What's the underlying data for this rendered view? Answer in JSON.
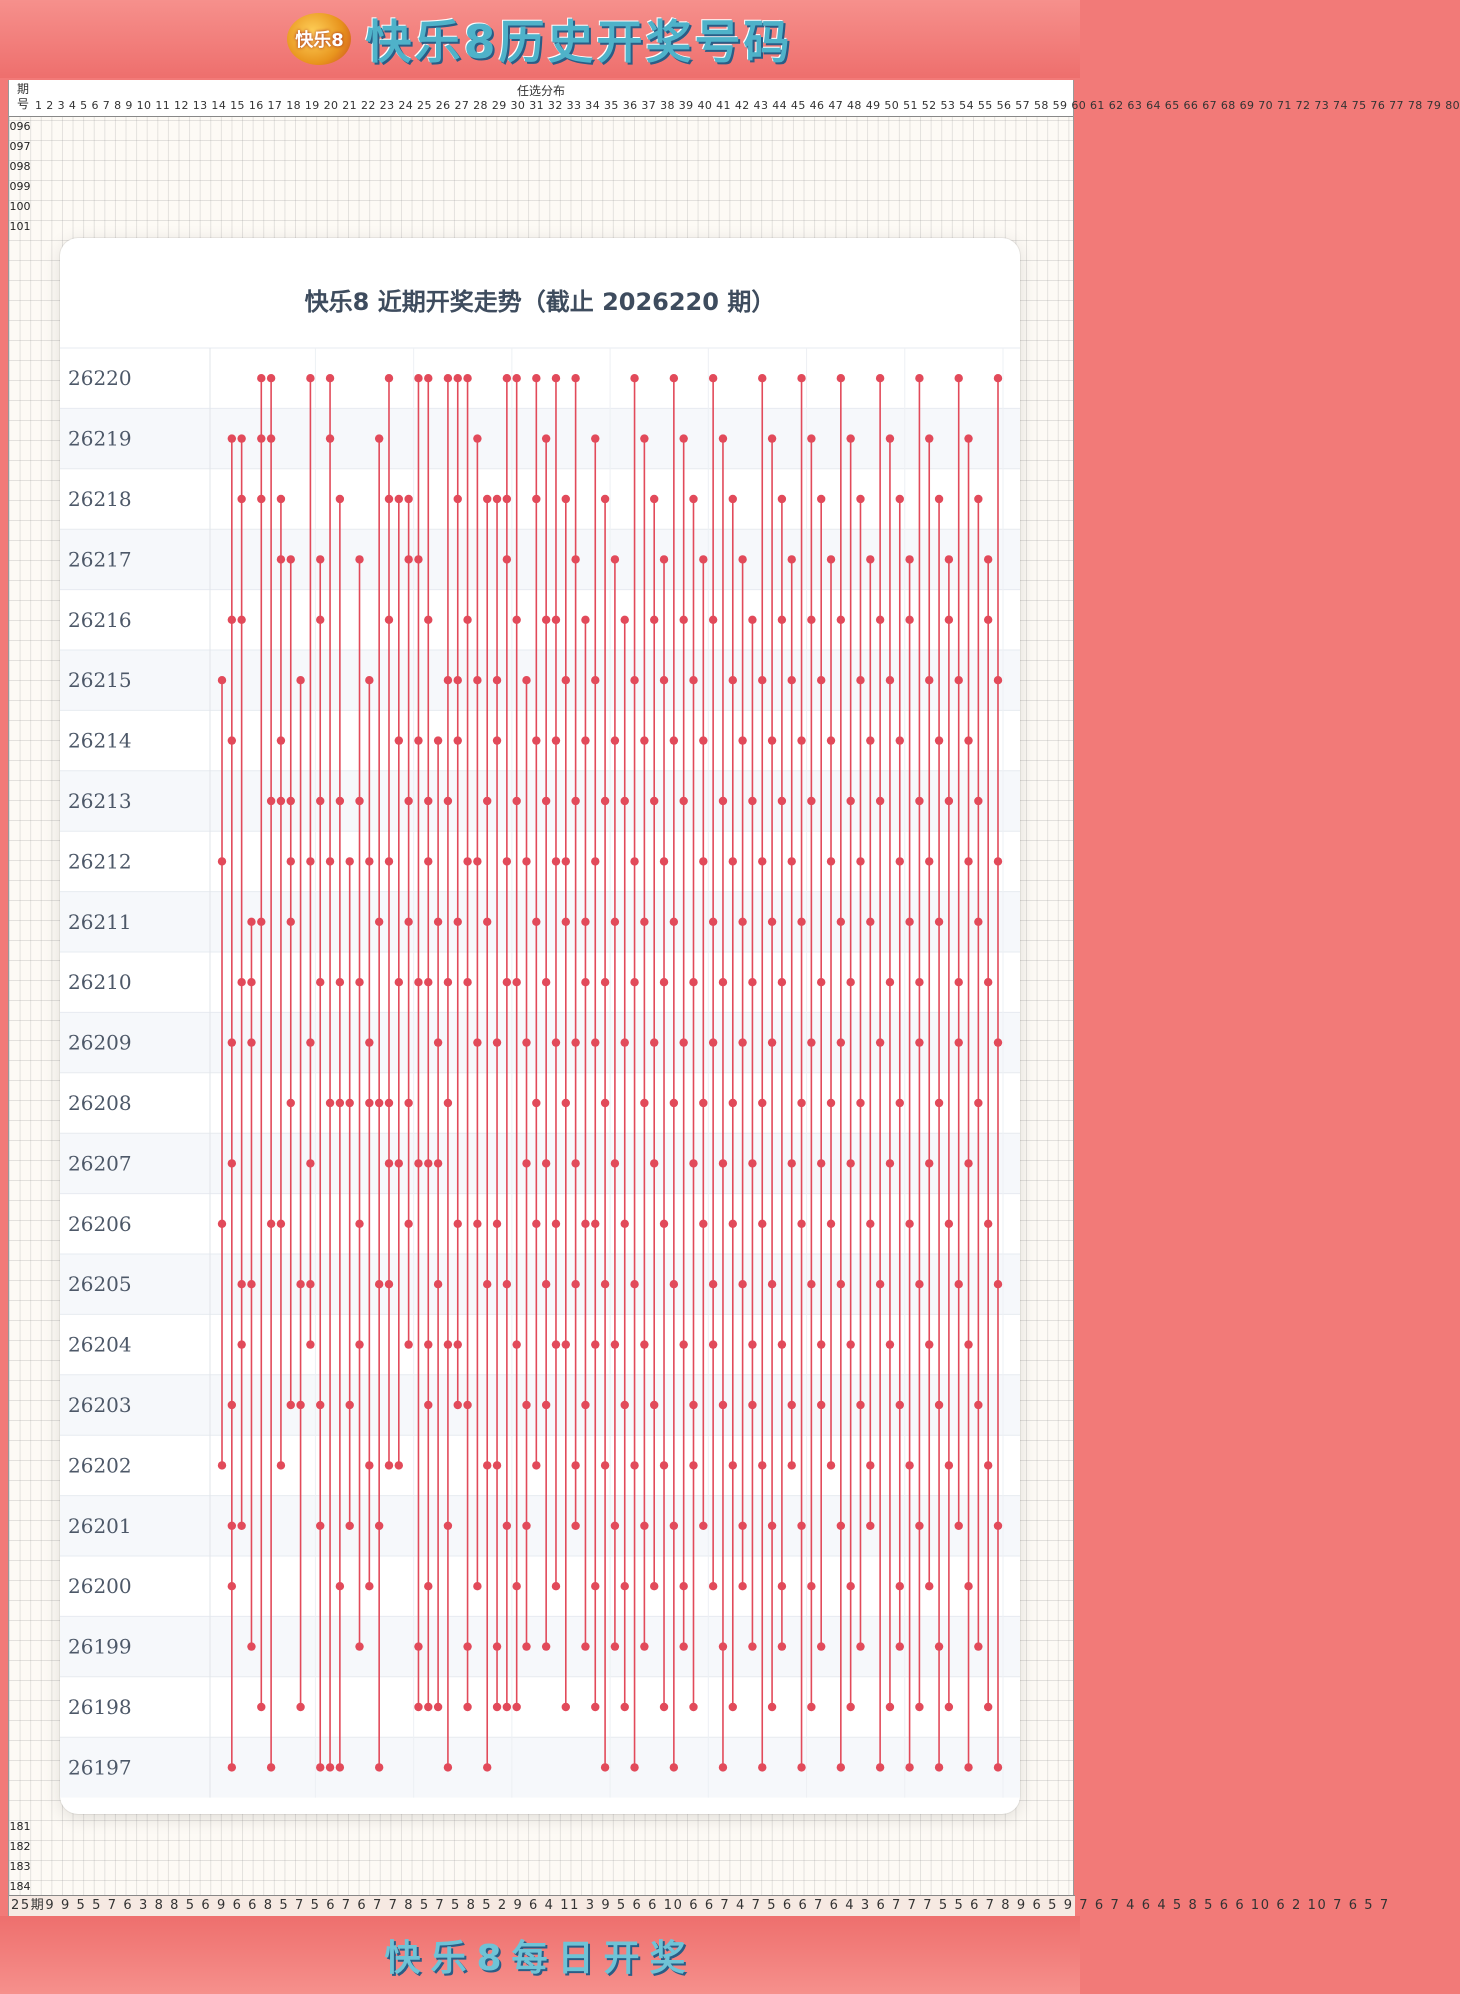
{
  "banner": {
    "title": "快乐8历史开奖号码",
    "logo_text": "快乐8"
  },
  "sheet": {
    "header_left": "期号",
    "header_center": "任选分布",
    "header_numbers": "1 2 3 4 5 6 7 8 9 10 11 12 13 14 15 16 17 18 19 20 21 22 23 24 25 26 27 28 29 30 31 32 33 34 35 36 37 38 39 40 41 42 43 44 45 46 47 48 49 50 51 52 53 54 55 56 57 58 59 60 61 62 63 64 65 66 67 68 69 70 71 72 73 74 75 76 77 78 79 80",
    "row_numbers_top": [
      "096",
      "097",
      "098",
      "099",
      "100",
      "101"
    ],
    "row_numbers_bottom": [
      "181",
      "182",
      "183",
      "184"
    ],
    "footer_text": "25期9 9 5 5 7 6 3 8 8 5 6 9 6 6 8 5 7 5 6 7 6 7 7 8 5 7 5 8 5 2 9 6 4 11 3 9 5 6 6 10 6 6 7 4 7 5 6 6 7 6 4 3 6 7 7 7 5 5 6 7 8 9 6 5 9 7 6 7 4 6 4 5 8 5 6 6 10 6 2 10 7 6 5 7"
  },
  "footer": {
    "title": "快乐8每日开奖"
  },
  "chart_data": {
    "type": "scatter",
    "title": "快乐8 近期开奖走势（截止 2026220 期）",
    "y_categories": [
      "26220",
      "26219",
      "26218",
      "26217",
      "26216",
      "26215",
      "26214",
      "26213",
      "26212",
      "26211",
      "26210",
      "26209",
      "26208",
      "26207",
      "26206",
      "26205",
      "26204",
      "26203",
      "26202",
      "26201",
      "26200",
      "26199",
      "26198",
      "26197"
    ],
    "x_range": [
      1,
      80
    ],
    "grid": true,
    "series": [
      {
        "number": 1,
        "draws": [
          "26215",
          "26212",
          "26206",
          "26202"
        ]
      },
      {
        "number": 2,
        "draws": [
          "26219",
          "26216",
          "26214",
          "26209",
          "26207",
          "26203",
          "26201",
          "26200",
          "26197"
        ]
      },
      {
        "number": 3,
        "draws": [
          "26219",
          "26218",
          "26216",
          "26210",
          "26205",
          "26204",
          "26201"
        ]
      },
      {
        "number": 4,
        "draws": [
          "26211",
          "26210",
          "26209",
          "26205",
          "26199"
        ]
      },
      {
        "number": 5,
        "draws": [
          "26220",
          "26219",
          "26218",
          "26211",
          "26198"
        ]
      },
      {
        "number": 6,
        "draws": [
          "26220",
          "26219",
          "26213",
          "26206",
          "26197"
        ]
      },
      {
        "number": 7,
        "draws": [
          "26218",
          "26217",
          "26214",
          "26213",
          "26206",
          "26202"
        ]
      },
      {
        "number": 8,
        "draws": [
          "26217",
          "26213",
          "26212",
          "26211",
          "26208",
          "26203"
        ]
      },
      {
        "number": 9,
        "draws": [
          "26215",
          "26205",
          "26203",
          "26198"
        ]
      },
      {
        "number": 10,
        "draws": [
          "26220",
          "26212",
          "26209",
          "26207",
          "26205",
          "26204"
        ]
      },
      {
        "number": 11,
        "draws": [
          "26217",
          "26216",
          "26213",
          "26210",
          "26203",
          "26201",
          "26197"
        ]
      },
      {
        "number": 12,
        "draws": [
          "26220",
          "26219",
          "26212",
          "26208",
          "26197"
        ]
      },
      {
        "number": 13,
        "draws": [
          "26218",
          "26213",
          "26210",
          "26208",
          "26200",
          "26197"
        ]
      },
      {
        "number": 14,
        "draws": [
          "26212",
          "26208",
          "26203",
          "26201"
        ]
      },
      {
        "number": 15,
        "draws": [
          "26217",
          "26213",
          "26210",
          "26206",
          "26204",
          "26199"
        ]
      },
      {
        "number": 16,
        "draws": [
          "26215",
          "26212",
          "26209",
          "26208",
          "26202",
          "26200"
        ]
      },
      {
        "number": 17,
        "draws": [
          "26219",
          "26211",
          "26208",
          "26205",
          "26201",
          "26197"
        ]
      },
      {
        "number": 18,
        "draws": [
          "26220",
          "26218",
          "26216",
          "26212",
          "26208",
          "26207",
          "26205",
          "26202"
        ]
      },
      {
        "number": 19,
        "draws": [
          "26218",
          "26214",
          "26210",
          "26207",
          "26202"
        ]
      },
      {
        "number": 20,
        "draws": [
          "26218",
          "26217",
          "26213",
          "26211",
          "26208",
          "26206",
          "26204"
        ]
      },
      {
        "number": 21,
        "draws": [
          "26220",
          "26217",
          "26214",
          "26210",
          "26207",
          "26199",
          "26198"
        ]
      },
      {
        "number": 22,
        "draws": [
          "26220",
          "26216",
          "26213",
          "26212",
          "26210",
          "26207",
          "26204",
          "26203",
          "26200",
          "26198"
        ]
      },
      {
        "number": 23,
        "draws": [
          "26214",
          "26211",
          "26209",
          "26207",
          "26205",
          "26198"
        ]
      },
      {
        "number": 24,
        "draws": [
          "26220",
          "26215",
          "26213",
          "26210",
          "26208",
          "26204",
          "26201",
          "26197"
        ]
      },
      {
        "number": 25,
        "draws": [
          "26220",
          "26218",
          "26215",
          "26214",
          "26211",
          "26206",
          "26204",
          "26203"
        ]
      },
      {
        "number": 26,
        "draws": [
          "26220",
          "26216",
          "26212",
          "26210",
          "26203",
          "26199",
          "26198"
        ]
      },
      {
        "number": 27,
        "draws": [
          "26219",
          "26215",
          "26212",
          "26209",
          "26206",
          "26200"
        ]
      },
      {
        "number": 28,
        "draws": [
          "26218",
          "26213",
          "26211",
          "26205",
          "26202",
          "26197"
        ]
      },
      {
        "number": 29,
        "draws": [
          "26218",
          "26215",
          "26214",
          "26209",
          "26206",
          "26202",
          "26199",
          "26198"
        ]
      },
      {
        "number": 30,
        "draws": [
          "26220",
          "26218",
          "26217",
          "26212",
          "26210",
          "26205",
          "26201",
          "26198"
        ]
      },
      {
        "number": 31,
        "draws": [
          "26220",
          "26216",
          "26213",
          "26210",
          "26204",
          "26200",
          "26198"
        ]
      },
      {
        "number": 32,
        "draws": [
          "26215",
          "26212",
          "26209",
          "26207",
          "26203",
          "26201",
          "26199"
        ]
      },
      {
        "number": 33,
        "draws": [
          "26220",
          "26218",
          "26214",
          "26211",
          "26208",
          "26206",
          "26202"
        ]
      },
      {
        "number": 34,
        "draws": [
          "26219",
          "26216",
          "26213",
          "26210",
          "26207",
          "26205",
          "26203",
          "26199"
        ]
      },
      {
        "number": 35,
        "draws": [
          "26220",
          "26216",
          "26214",
          "26212",
          "26209",
          "26206",
          "26204",
          "26200"
        ]
      },
      {
        "number": 36,
        "draws": [
          "26218",
          "26215",
          "26212",
          "26211",
          "26208",
          "26204",
          "26198"
        ]
      },
      {
        "number": 37,
        "draws": [
          "26220",
          "26217",
          "26213",
          "26209",
          "26207",
          "26205",
          "26202",
          "26201"
        ]
      },
      {
        "number": 38,
        "draws": [
          "26216",
          "26214",
          "26211",
          "26210",
          "26206",
          "26203",
          "26199"
        ]
      },
      {
        "number": 39,
        "draws": [
          "26219",
          "26215",
          "26212",
          "26209",
          "26206",
          "26204",
          "26200",
          "26198"
        ]
      },
      {
        "number": 40,
        "draws": [
          "26218",
          "26213",
          "26210",
          "26208",
          "26205",
          "26202",
          "26197"
        ]
      },
      {
        "number": 41,
        "draws": [
          "26217",
          "26214",
          "26211",
          "26207",
          "26204",
          "26201",
          "26199"
        ]
      },
      {
        "number": 42,
        "draws": [
          "26216",
          "26213",
          "26209",
          "26206",
          "26203",
          "26200",
          "26198"
        ]
      },
      {
        "number": 43,
        "draws": [
          "26220",
          "26215",
          "26212",
          "26210",
          "26205",
          "26202",
          "26197"
        ]
      },
      {
        "number": 44,
        "draws": [
          "26219",
          "26214",
          "26211",
          "26208",
          "26204",
          "26201",
          "26199"
        ]
      },
      {
        "number": 45,
        "draws": [
          "26218",
          "26216",
          "26213",
          "26209",
          "26207",
          "26203",
          "26200"
        ]
      },
      {
        "number": 46,
        "draws": [
          "26217",
          "26215",
          "26212",
          "26210",
          "26206",
          "26202",
          "26198"
        ]
      },
      {
        "number": 47,
        "draws": [
          "26220",
          "26214",
          "26211",
          "26208",
          "26205",
          "26201",
          "26197"
        ]
      },
      {
        "number": 48,
        "draws": [
          "26219",
          "26216",
          "26213",
          "26209",
          "26204",
          "26200",
          "26199"
        ]
      },
      {
        "number": 49,
        "draws": [
          "26218",
          "26215",
          "26210",
          "26207",
          "26203",
          "26202",
          "26198"
        ]
      },
      {
        "number": 50,
        "draws": [
          "26217",
          "26214",
          "26212",
          "26208",
          "26206",
          "26201"
        ]
      },
      {
        "number": 51,
        "draws": [
          "26220",
          "26216",
          "26211",
          "26209",
          "26205",
          "26204",
          "26200"
        ]
      },
      {
        "number": 52,
        "draws": [
          "26219",
          "26213",
          "26210",
          "26207",
          "26203",
          "26199",
          "26197"
        ]
      },
      {
        "number": 53,
        "draws": [
          "26218",
          "26215",
          "26212",
          "26208",
          "26206",
          "26202",
          "26198"
        ]
      },
      {
        "number": 54,
        "draws": [
          "26217",
          "26214",
          "26211",
          "26209",
          "26205",
          "26201",
          "26200"
        ]
      },
      {
        "number": 55,
        "draws": [
          "26216",
          "26213",
          "26210",
          "26207",
          "26204",
          "26203",
          "26199"
        ]
      },
      {
        "number": 56,
        "draws": [
          "26220",
          "26215",
          "26212",
          "26208",
          "26206",
          "26202",
          "26197"
        ]
      },
      {
        "number": 57,
        "draws": [
          "26219",
          "26214",
          "26211",
          "26209",
          "26205",
          "26201",
          "26198"
        ]
      },
      {
        "number": 58,
        "draws": [
          "26218",
          "26216",
          "26213",
          "26210",
          "26204",
          "26200",
          "26199"
        ]
      },
      {
        "number": 59,
        "draws": [
          "26217",
          "26215",
          "26212",
          "26207",
          "26203",
          "26202"
        ]
      },
      {
        "number": 60,
        "draws": [
          "26220",
          "26214",
          "26211",
          "26208",
          "26206",
          "26201",
          "26197"
        ]
      },
      {
        "number": 61,
        "draws": [
          "26219",
          "26216",
          "26213",
          "26209",
          "26205",
          "26200",
          "26198"
        ]
      },
      {
        "number": 62,
        "draws": [
          "26218",
          "26215",
          "26210",
          "26207",
          "26204",
          "26203",
          "26199"
        ]
      },
      {
        "number": 63,
        "draws": [
          "26217",
          "26214",
          "26212",
          "26208",
          "26206",
          "26202"
        ]
      },
      {
        "number": 64,
        "draws": [
          "26220",
          "26216",
          "26211",
          "26209",
          "26205",
          "26201",
          "26197"
        ]
      },
      {
        "number": 65,
        "draws": [
          "26219",
          "26213",
          "26210",
          "26207",
          "26204",
          "26200",
          "26198"
        ]
      },
      {
        "number": 66,
        "draws": [
          "26218",
          "26215",
          "26212",
          "26208",
          "26203",
          "26199"
        ]
      },
      {
        "number": 67,
        "draws": [
          "26217",
          "26214",
          "26211",
          "26206",
          "26202",
          "26201"
        ]
      },
      {
        "number": 68,
        "draws": [
          "26220",
          "26216",
          "26213",
          "26209",
          "26205",
          "26197"
        ]
      },
      {
        "number": 69,
        "draws": [
          "26219",
          "26215",
          "26210",
          "26207",
          "26204",
          "26198"
        ]
      },
      {
        "number": 70,
        "draws": [
          "26218",
          "26214",
          "26212",
          "26208",
          "26203",
          "26200",
          "26199"
        ]
      },
      {
        "number": 71,
        "draws": [
          "26217",
          "26216",
          "26211",
          "26206",
          "26202",
          "26197"
        ]
      },
      {
        "number": 72,
        "draws": [
          "26220",
          "26213",
          "26210",
          "26209",
          "26205",
          "26201",
          "26198"
        ]
      },
      {
        "number": 73,
        "draws": [
          "26219",
          "26215",
          "26212",
          "26207",
          "26204",
          "26200"
        ]
      },
      {
        "number": 74,
        "draws": [
          "26218",
          "26214",
          "26211",
          "26208",
          "26203",
          "26199",
          "26197"
        ]
      },
      {
        "number": 75,
        "draws": [
          "26217",
          "26216",
          "26213",
          "26206",
          "26202",
          "26198"
        ]
      },
      {
        "number": 76,
        "draws": [
          "26220",
          "26215",
          "26210",
          "26209",
          "26205",
          "26201"
        ]
      },
      {
        "number": 77,
        "draws": [
          "26219",
          "26214",
          "26212",
          "26207",
          "26204",
          "26200",
          "26197"
        ]
      },
      {
        "number": 78,
        "draws": [
          "26218",
          "26213",
          "26211",
          "26208",
          "26203",
          "26199"
        ]
      },
      {
        "number": 79,
        "draws": [
          "26217",
          "26216",
          "26210",
          "26206",
          "26202",
          "26198"
        ]
      },
      {
        "number": 80,
        "draws": [
          "26220",
          "26215",
          "26212",
          "26209",
          "26205",
          "26201",
          "26197"
        ]
      }
    ]
  },
  "colors": {
    "marker": "#e24a5a",
    "line": "#e24a5a",
    "title": "#3e4c5e",
    "banner": "#f27a78"
  }
}
